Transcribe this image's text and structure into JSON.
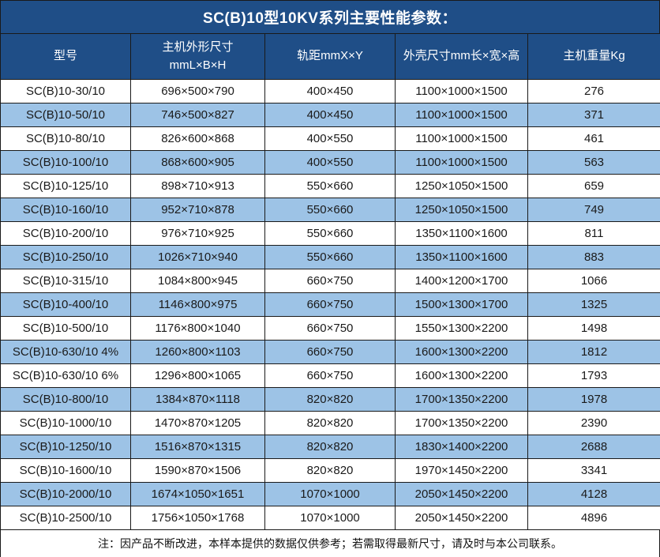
{
  "page_title": "SC(B)10型10KV系列主要性能参数：",
  "colors": {
    "header_bg": "#1F4E87",
    "row_alt_bg": "#9DC3E6",
    "row_bg": "#FFFFFF",
    "border": "#1A1A1A",
    "header_text": "#FFFFFF",
    "cell_text": "#1A1A1A"
  },
  "table": {
    "header": {
      "col_model": "型号",
      "col_unit_size_line1": "主机外形尺寸",
      "col_unit_size_line2": "mmL×B×H",
      "col_rail": "轨距mmX×Y",
      "col_shell": "外壳尺寸mm长×宽×高",
      "col_weight": "主机重量Kg"
    },
    "rows": [
      [
        "SC(B)10-30/10",
        "696×500×790",
        "400×450",
        "1100×1000×1500",
        "276"
      ],
      [
        "SC(B)10-50/10",
        "746×500×827",
        "400×450",
        "1100×1000×1500",
        "371"
      ],
      [
        "SC(B)10-80/10",
        "826×600×868",
        "400×550",
        "1100×1000×1500",
        "461"
      ],
      [
        "SC(B)10-100/10",
        "868×600×905",
        "400×550",
        "1100×1000×1500",
        "563"
      ],
      [
        "SC(B)10-125/10",
        "898×710×913",
        "550×660",
        "1250×1050×1500",
        "659"
      ],
      [
        "SC(B)10-160/10",
        "952×710×878",
        "550×660",
        "1250×1050×1500",
        "749"
      ],
      [
        "SC(B)10-200/10",
        "976×710×925",
        "550×660",
        "1350×1100×1600",
        "811"
      ],
      [
        "SC(B)10-250/10",
        "1026×710×940",
        "550×660",
        "1350×1100×1600",
        "883"
      ],
      [
        "SC(B)10-315/10",
        "1084×800×945",
        "660×750",
        "1400×1200×1700",
        "1066"
      ],
      [
        "SC(B)10-400/10",
        "1146×800×975",
        "660×750",
        "1500×1300×1700",
        "1325"
      ],
      [
        "SC(B)10-500/10",
        "1176×800×1040",
        "660×750",
        "1550×1300×2200",
        "1498"
      ],
      [
        "SC(B)10-630/10 4%",
        "1260×800×1103",
        "660×750",
        "1600×1300×2200",
        "1812"
      ],
      [
        "SC(B)10-630/10 6%",
        "1296×800×1065",
        "660×750",
        "1600×1300×2200",
        "1793"
      ],
      [
        "SC(B)10-800/10",
        "1384×870×1118",
        "820×820",
        "1700×1350×2200",
        "1978"
      ],
      [
        "SC(B)10-1000/10",
        "1470×870×1205",
        "820×820",
        "1700×1350×2200",
        "2390"
      ],
      [
        "SC(B)10-1250/10",
        "1516×870×1315",
        "820×820",
        "1830×1400×2200",
        "2688"
      ],
      [
        "SC(B)10-1600/10",
        "1590×870×1506",
        "820×820",
        "1970×1450×2200",
        "3341"
      ],
      [
        "SC(B)10-2000/10",
        "1674×1050×1651",
        "1070×1000",
        "2050×1450×2200",
        "4128"
      ],
      [
        "SC(B)10-2500/10",
        "1756×1050×1768",
        "1070×1000",
        "2050×1450×2200",
        "4896"
      ]
    ]
  },
  "footer_note": "注：因产品不断改进，本样本提供的数据仅供参考；若需取得最新尺寸，请及时与本公司联系。"
}
